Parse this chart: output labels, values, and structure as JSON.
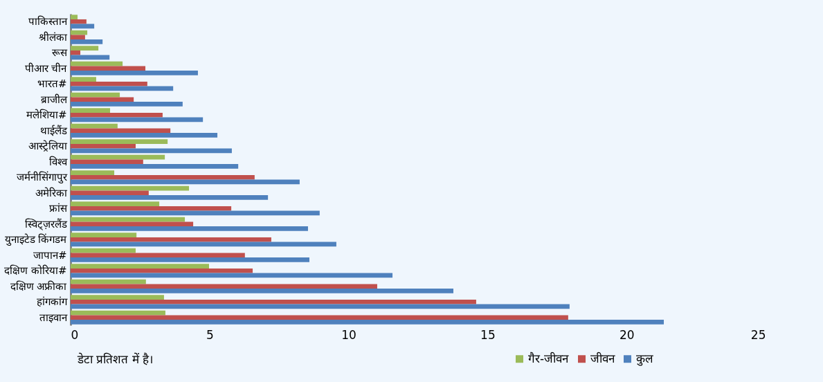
{
  "chart_data": {
    "type": "bar",
    "orientation": "horizontal",
    "categories": [
      "पाकिस्तान",
      "श्रीलंका",
      "रूस",
      "पीआर चीन",
      "भारत#",
      "ब्राजील",
      "मलेशिया#",
      "थाईलैंड",
      "आस्ट्रेलिया",
      "विश्व",
      "जर्मनीसिंगापुर",
      "अमेरिका",
      "फ्रांस",
      "स्विट्ज़रलैंड",
      "युनाइटेड किंगडम",
      "जापान#",
      "दक्षिण कोरिया#",
      "दक्षिण अफ्रीका",
      "हांगकांग",
      "ताइवान"
    ],
    "series": [
      {
        "name": "गैर-जीवन",
        "color": "#9bbb59",
        "values": [
          0.25,
          0.6,
          1.0,
          1.87,
          0.92,
          1.77,
          1.42,
          1.69,
          3.49,
          3.39,
          1.57,
          4.26,
          3.19,
          4.11,
          2.37,
          2.34,
          4.98,
          2.71,
          3.36,
          3.41
        ]
      },
      {
        "name": "जीवन",
        "color": "#c0504d",
        "values": [
          0.57,
          0.52,
          0.35,
          2.69,
          2.76,
          2.27,
          3.31,
          3.59,
          2.34,
          2.61,
          6.62,
          2.81,
          5.78,
          4.41,
          7.22,
          6.27,
          6.55,
          11.03,
          14.59,
          17.9
        ]
      },
      {
        "name": "कुल",
        "color": "#4f81bd",
        "values": [
          0.85,
          1.15,
          1.4,
          4.58,
          3.69,
          4.03,
          4.76,
          5.28,
          5.8,
          6.03,
          8.24,
          7.1,
          8.96,
          8.54,
          9.56,
          8.59,
          11.58,
          13.77,
          17.95,
          21.34
        ]
      }
    ],
    "xlim": [
      0,
      25
    ],
    "xticks": [
      0,
      5,
      10,
      15,
      20,
      25
    ],
    "grid": false,
    "legend": "bottom right",
    "annotations": [
      "डेटा प्रतिशत में है।"
    ]
  }
}
